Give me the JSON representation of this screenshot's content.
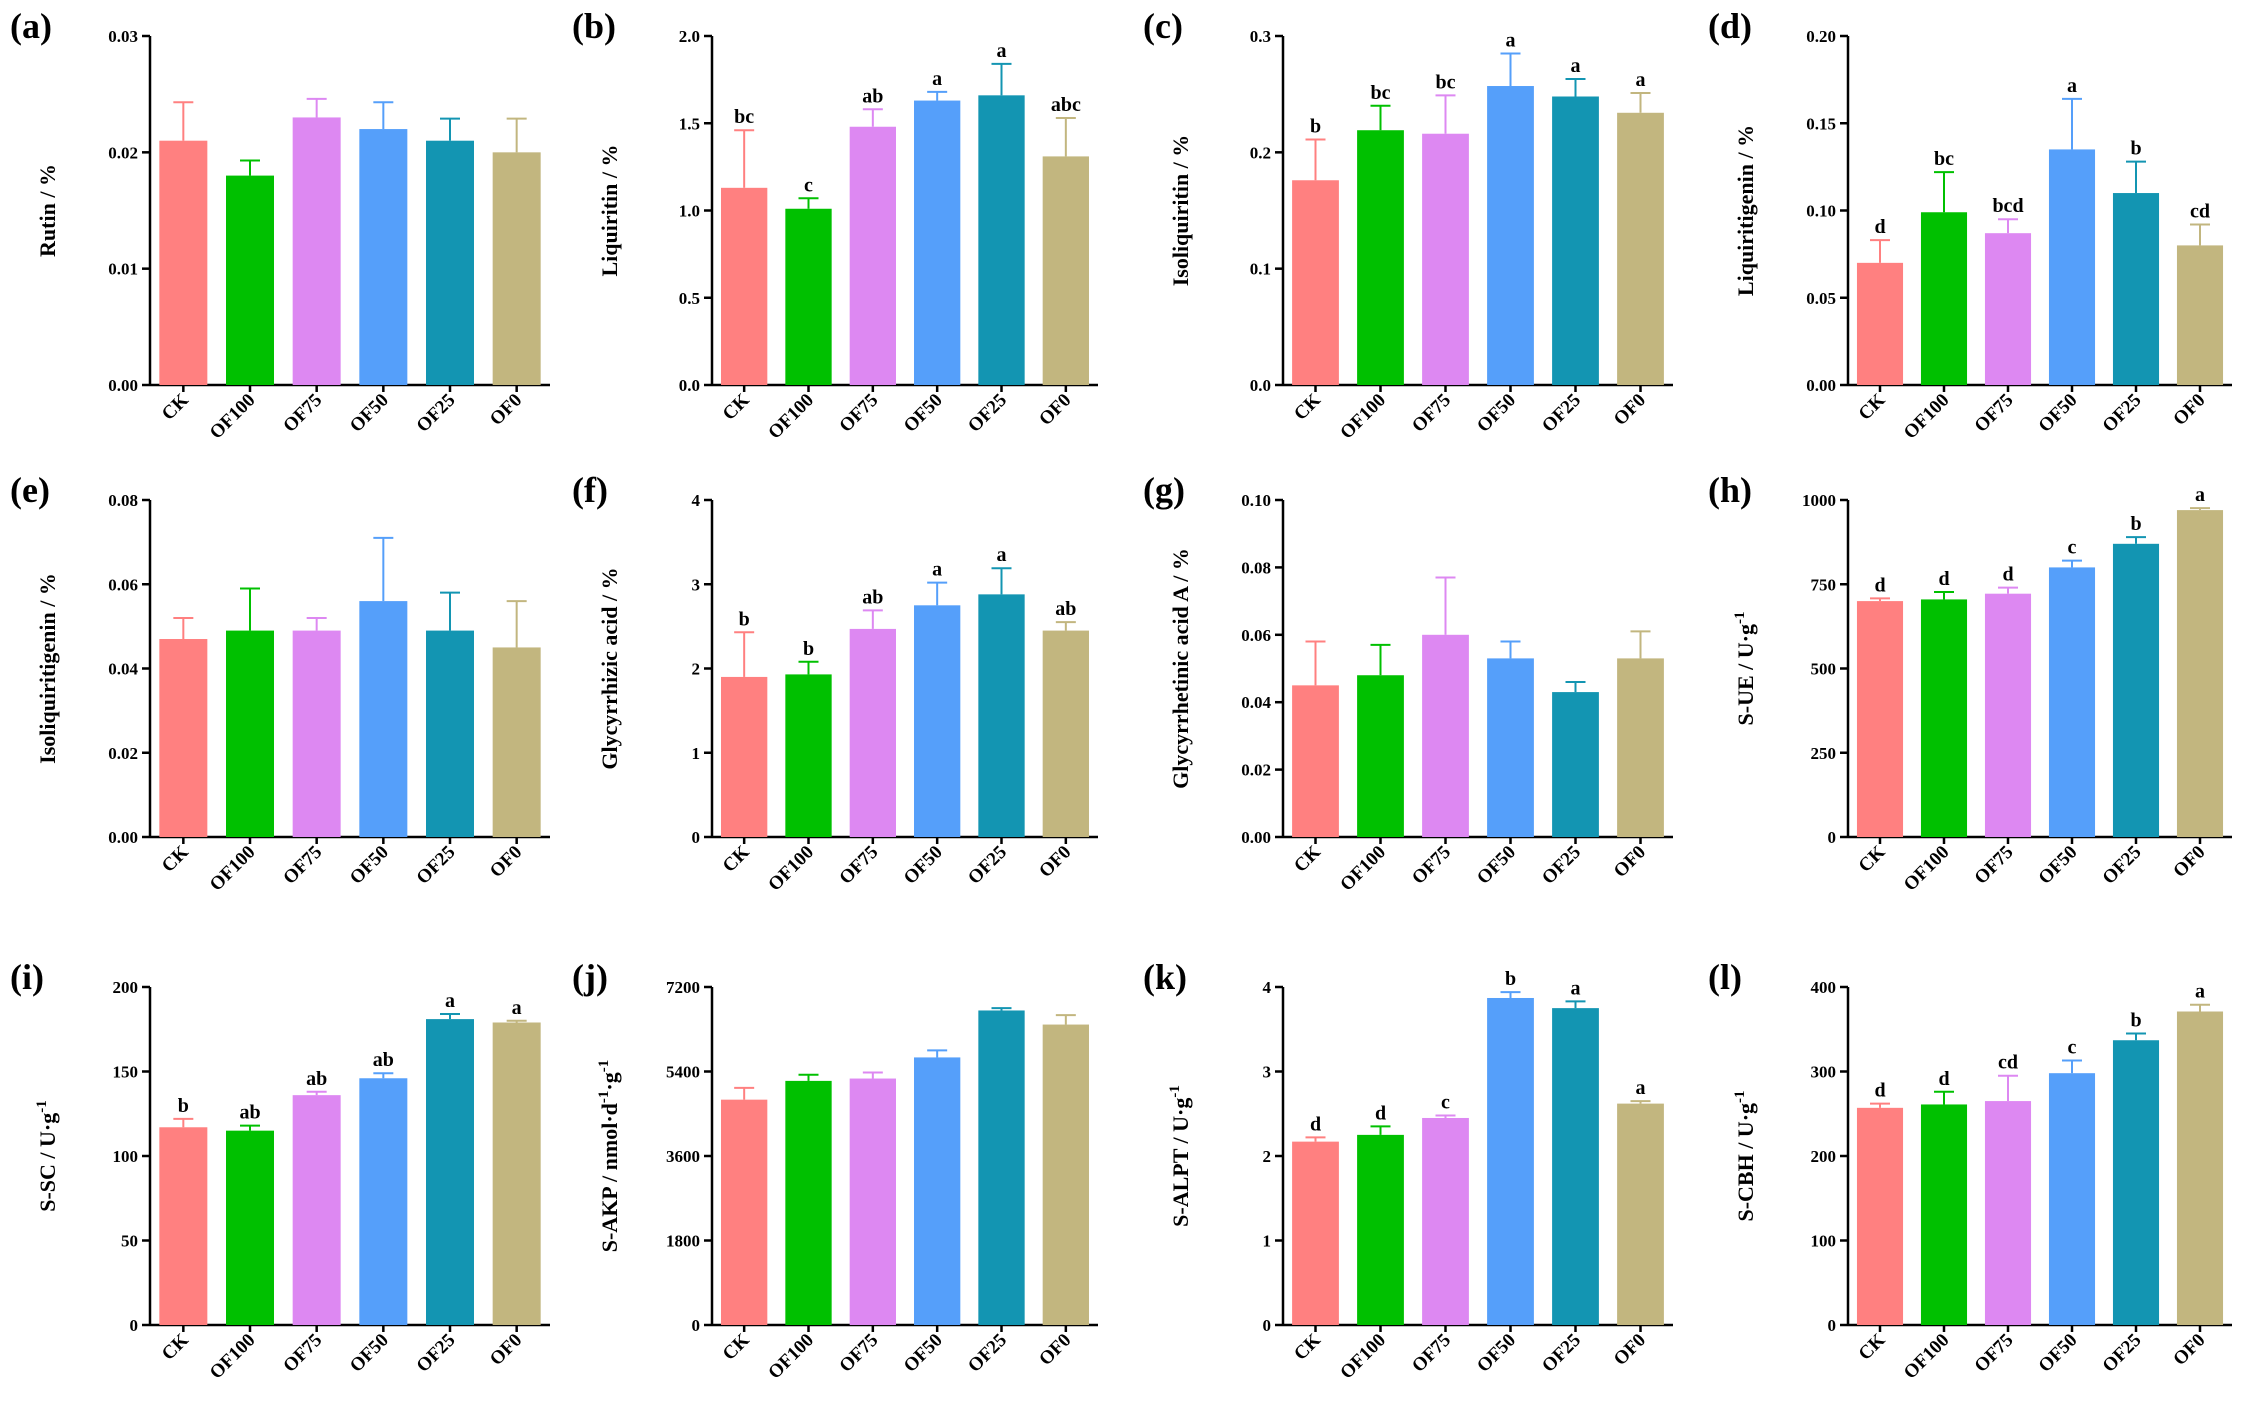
{
  "chart_data": [
    {
      "type": "bar",
      "panel": "(a)",
      "ylabel": "Rutin / %",
      "ylim": [
        0,
        0.03
      ],
      "yticks": [
        "0.00",
        "0.01",
        "0.02",
        "0.03"
      ],
      "categories": [
        "CK",
        "OF100",
        "OF75",
        "OF50",
        "OF25",
        "OF0"
      ],
      "values": [
        0.021,
        0.018,
        0.023,
        0.022,
        0.021,
        0.02
      ],
      "errors": [
        0.0033,
        0.0013,
        0.0016,
        0.0023,
        0.0019,
        0.0029
      ],
      "sig": [
        "",
        "",
        "",
        "",
        "",
        ""
      ]
    },
    {
      "type": "bar",
      "panel": "(b)",
      "ylabel": "Liquiritin / %",
      "ylim": [
        0,
        2.0
      ],
      "yticks": [
        "0.0",
        "0.5",
        "1.0",
        "1.5",
        "2.0"
      ],
      "categories": [
        "CK",
        "OF100",
        "OF75",
        "OF50",
        "OF25",
        "OF0"
      ],
      "values": [
        1.13,
        1.01,
        1.48,
        1.63,
        1.66,
        1.31
      ],
      "errors": [
        0.33,
        0.06,
        0.1,
        0.05,
        0.18,
        0.22
      ],
      "sig": [
        "bc",
        "c",
        "ab",
        "a",
        "a",
        "abc"
      ]
    },
    {
      "type": "bar",
      "panel": "(c)",
      "ylabel": "Isoliquiritin / %",
      "ylim": [
        0,
        0.3
      ],
      "yticks": [
        "0.0",
        "0.1",
        "0.2",
        "0.3"
      ],
      "categories": [
        "CK",
        "OF100",
        "OF75",
        "OF50",
        "OF25",
        "OF0"
      ],
      "values": [
        0.176,
        0.219,
        0.216,
        0.257,
        0.248,
        0.234
      ],
      "errors": [
        0.035,
        0.021,
        0.033,
        0.028,
        0.015,
        0.017
      ],
      "sig": [
        "b",
        "bc",
        "bc",
        "a",
        "a",
        "a"
      ]
    },
    {
      "type": "bar",
      "panel": "(d)",
      "ylabel": "Liquiritigenin / %",
      "ylim": [
        0,
        0.2
      ],
      "yticks": [
        "0.00",
        "0.05",
        "0.10",
        "0.15",
        "0.20"
      ],
      "categories": [
        "CK",
        "OF100",
        "OF75",
        "OF50",
        "OF25",
        "OF0"
      ],
      "values": [
        0.07,
        0.099,
        0.087,
        0.135,
        0.11,
        0.08
      ],
      "errors": [
        0.013,
        0.023,
        0.008,
        0.029,
        0.018,
        0.012
      ],
      "sig": [
        "d",
        "bc",
        "bcd",
        "a",
        "b",
        "cd"
      ]
    },
    {
      "type": "bar",
      "panel": "(e)",
      "ylabel": "Isoliquiritigenin / %",
      "ylim": [
        0,
        0.08
      ],
      "yticks": [
        "0.00",
        "0.02",
        "0.04",
        "0.06",
        "0.08"
      ],
      "categories": [
        "CK",
        "OF100",
        "OF75",
        "OF50",
        "OF25",
        "OF0"
      ],
      "values": [
        0.047,
        0.049,
        0.049,
        0.056,
        0.049,
        0.045
      ],
      "errors": [
        0.005,
        0.01,
        0.003,
        0.015,
        0.009,
        0.011
      ],
      "sig": [
        "",
        "",
        "",
        "",
        "",
        ""
      ]
    },
    {
      "type": "bar",
      "panel": "(f)",
      "ylabel": "Glycyrrhizic acid / %",
      "ylim": [
        0,
        4
      ],
      "yticks": [
        "0",
        "1",
        "2",
        "3",
        "4"
      ],
      "categories": [
        "CK",
        "OF100",
        "OF75",
        "OF50",
        "OF25",
        "OF0"
      ],
      "values": [
        1.9,
        1.93,
        2.47,
        2.75,
        2.88,
        2.45
      ],
      "errors": [
        0.53,
        0.15,
        0.22,
        0.27,
        0.31,
        0.1
      ],
      "sig": [
        "b",
        "b",
        "ab",
        "a",
        "a",
        "ab"
      ]
    },
    {
      "type": "bar",
      "panel": "(g)",
      "ylabel": "Glycyrrhetinic acid A / %",
      "ylim": [
        0,
        0.1
      ],
      "yticks": [
        "0.00",
        "0.02",
        "0.04",
        "0.06",
        "0.08",
        "0.10"
      ],
      "categories": [
        "CK",
        "OF100",
        "OF75",
        "OF50",
        "OF25",
        "OF0"
      ],
      "values": [
        0.045,
        0.048,
        0.06,
        0.053,
        0.043,
        0.053
      ],
      "errors": [
        0.013,
        0.009,
        0.017,
        0.005,
        0.003,
        0.008
      ],
      "sig": [
        "",
        "",
        "",
        "",
        "",
        ""
      ]
    },
    {
      "type": "bar",
      "panel": "(h)",
      "ylabel": "S-UE / U·g",
      "ylabel_sup": "-1",
      "ylim": [
        0,
        1000
      ],
      "yticks": [
        "0",
        "250",
        "500",
        "750",
        "1000"
      ],
      "categories": [
        "CK",
        "OF100",
        "OF75",
        "OF50",
        "OF25",
        "OF0"
      ],
      "values": [
        700,
        705,
        722,
        800,
        870,
        970
      ],
      "errors": [
        8,
        22,
        18,
        20,
        20,
        6
      ],
      "sig": [
        "d",
        "d",
        "d",
        "c",
        "b",
        "a"
      ]
    },
    {
      "type": "bar",
      "panel": "(i)",
      "ylabel": "S-SC / U·g",
      "ylabel_sup": "-1",
      "ylim": [
        0,
        200
      ],
      "yticks": [
        "0",
        "50",
        "100",
        "150",
        "200"
      ],
      "categories": [
        "CK",
        "OF100",
        "OF75",
        "OF50",
        "OF25",
        "OF0"
      ],
      "values": [
        117,
        115,
        136,
        146,
        181,
        179
      ],
      "errors": [
        5,
        3,
        2,
        3,
        3,
        1
      ],
      "sig": [
        "b",
        "ab",
        "ab",
        "ab",
        "a",
        "a"
      ]
    },
    {
      "type": "bar",
      "panel": "(j)",
      "ylabel": "S-AKP / nmol·d",
      "ylabel_sup": "-1",
      "ylabel_tail": "·g",
      "ylabel_sup2": "-1",
      "ylim": [
        0,
        7200
      ],
      "yticks": [
        "0",
        "1800",
        "3600",
        "5400",
        "7200"
      ],
      "categories": [
        "CK",
        "OF100",
        "OF75",
        "OF50",
        "OF25",
        "OF0"
      ],
      "values": [
        4800,
        5200,
        5250,
        5700,
        6700,
        6400
      ],
      "errors": [
        250,
        130,
        130,
        150,
        50,
        200
      ],
      "sig": [
        "",
        "",
        "",
        "",
        "",
        ""
      ]
    },
    {
      "type": "bar",
      "panel": "(k)",
      "ylabel": "S-ALPT / U·g",
      "ylabel_sup": "-1",
      "ylim": [
        0,
        4
      ],
      "yticks": [
        "0",
        "1",
        "2",
        "3",
        "4"
      ],
      "categories": [
        "CK",
        "OF100",
        "OF75",
        "OF50",
        "OF25",
        "OF0"
      ],
      "values": [
        2.17,
        2.25,
        2.45,
        3.87,
        3.75,
        2.62
      ],
      "errors": [
        0.05,
        0.1,
        0.03,
        0.07,
        0.08,
        0.03
      ],
      "sig": [
        "d",
        "d",
        "c",
        "b",
        "a",
        "a"
      ]
    },
    {
      "type": "bar",
      "panel": "(l)",
      "ylabel": "S-CBH / U·g",
      "ylabel_sup": "-1",
      "ylim": [
        0,
        400
      ],
      "yticks": [
        "0",
        "100",
        "200",
        "300",
        "400"
      ],
      "categories": [
        "CK",
        "OF100",
        "OF75",
        "OF50",
        "OF25",
        "OF0"
      ],
      "values": [
        257,
        261,
        265,
        298,
        337,
        371
      ],
      "errors": [
        5,
        15,
        30,
        15,
        8,
        8
      ],
      "sig": [
        "d",
        "d",
        "cd",
        "c",
        "b",
        "a"
      ]
    }
  ],
  "colors": [
    "#ff8080",
    "#00c000",
    "#dd88f2",
    "#559ffa",
    "#1395b2",
    "#c2b67f"
  ]
}
